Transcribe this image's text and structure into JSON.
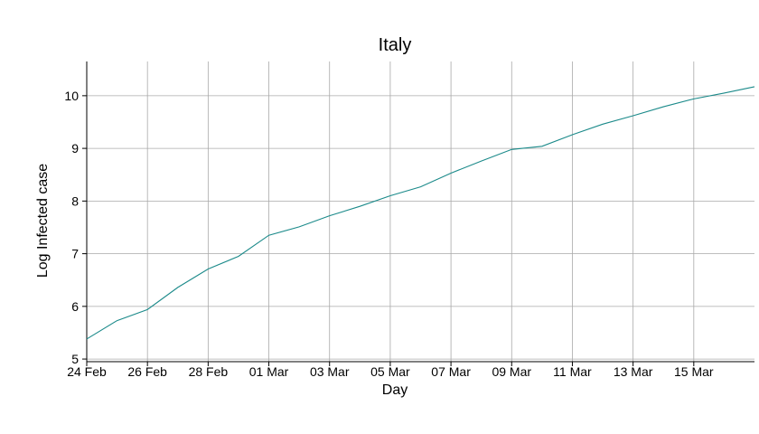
{
  "chart_data": {
    "type": "line",
    "title": "Italy",
    "xlabel": "Day",
    "ylabel": "Log Infected case",
    "grid": true,
    "legend": "none",
    "line_color": "#1b8a8a",
    "x_tick_labels": [
      "24 Feb",
      "26 Feb",
      "28 Feb",
      "01 Mar",
      "03 Mar",
      "05 Mar",
      "07 Mar",
      "09 Mar",
      "11 Mar",
      "13 Mar",
      "15 Mar"
    ],
    "y_ticks": [
      5,
      6,
      7,
      8,
      9,
      10
    ],
    "xlim": [
      "2020-02-24",
      "2020-03-17"
    ],
    "ylim": [
      4.95,
      10.65
    ],
    "series": [
      {
        "x": [
          "2020-02-24",
          "2020-02-25",
          "2020-02-26",
          "2020-02-27",
          "2020-02-28",
          "2020-02-29",
          "2020-03-01",
          "2020-03-02",
          "2020-03-03",
          "2020-03-04",
          "2020-03-05",
          "2020-03-06",
          "2020-03-07",
          "2020-03-08",
          "2020-03-09",
          "2020-03-10",
          "2020-03-11",
          "2020-03-12",
          "2020-03-13",
          "2020-03-14",
          "2020-03-15",
          "2020-03-16",
          "2020-03-17"
        ],
        "values": [
          5.38,
          5.73,
          5.94,
          6.36,
          6.71,
          6.95,
          7.35,
          7.51,
          7.72,
          7.9,
          8.1,
          8.27,
          8.53,
          8.76,
          8.98,
          9.04,
          9.26,
          9.46,
          9.62,
          9.79,
          9.94,
          10.05,
          10.17
        ]
      }
    ]
  }
}
